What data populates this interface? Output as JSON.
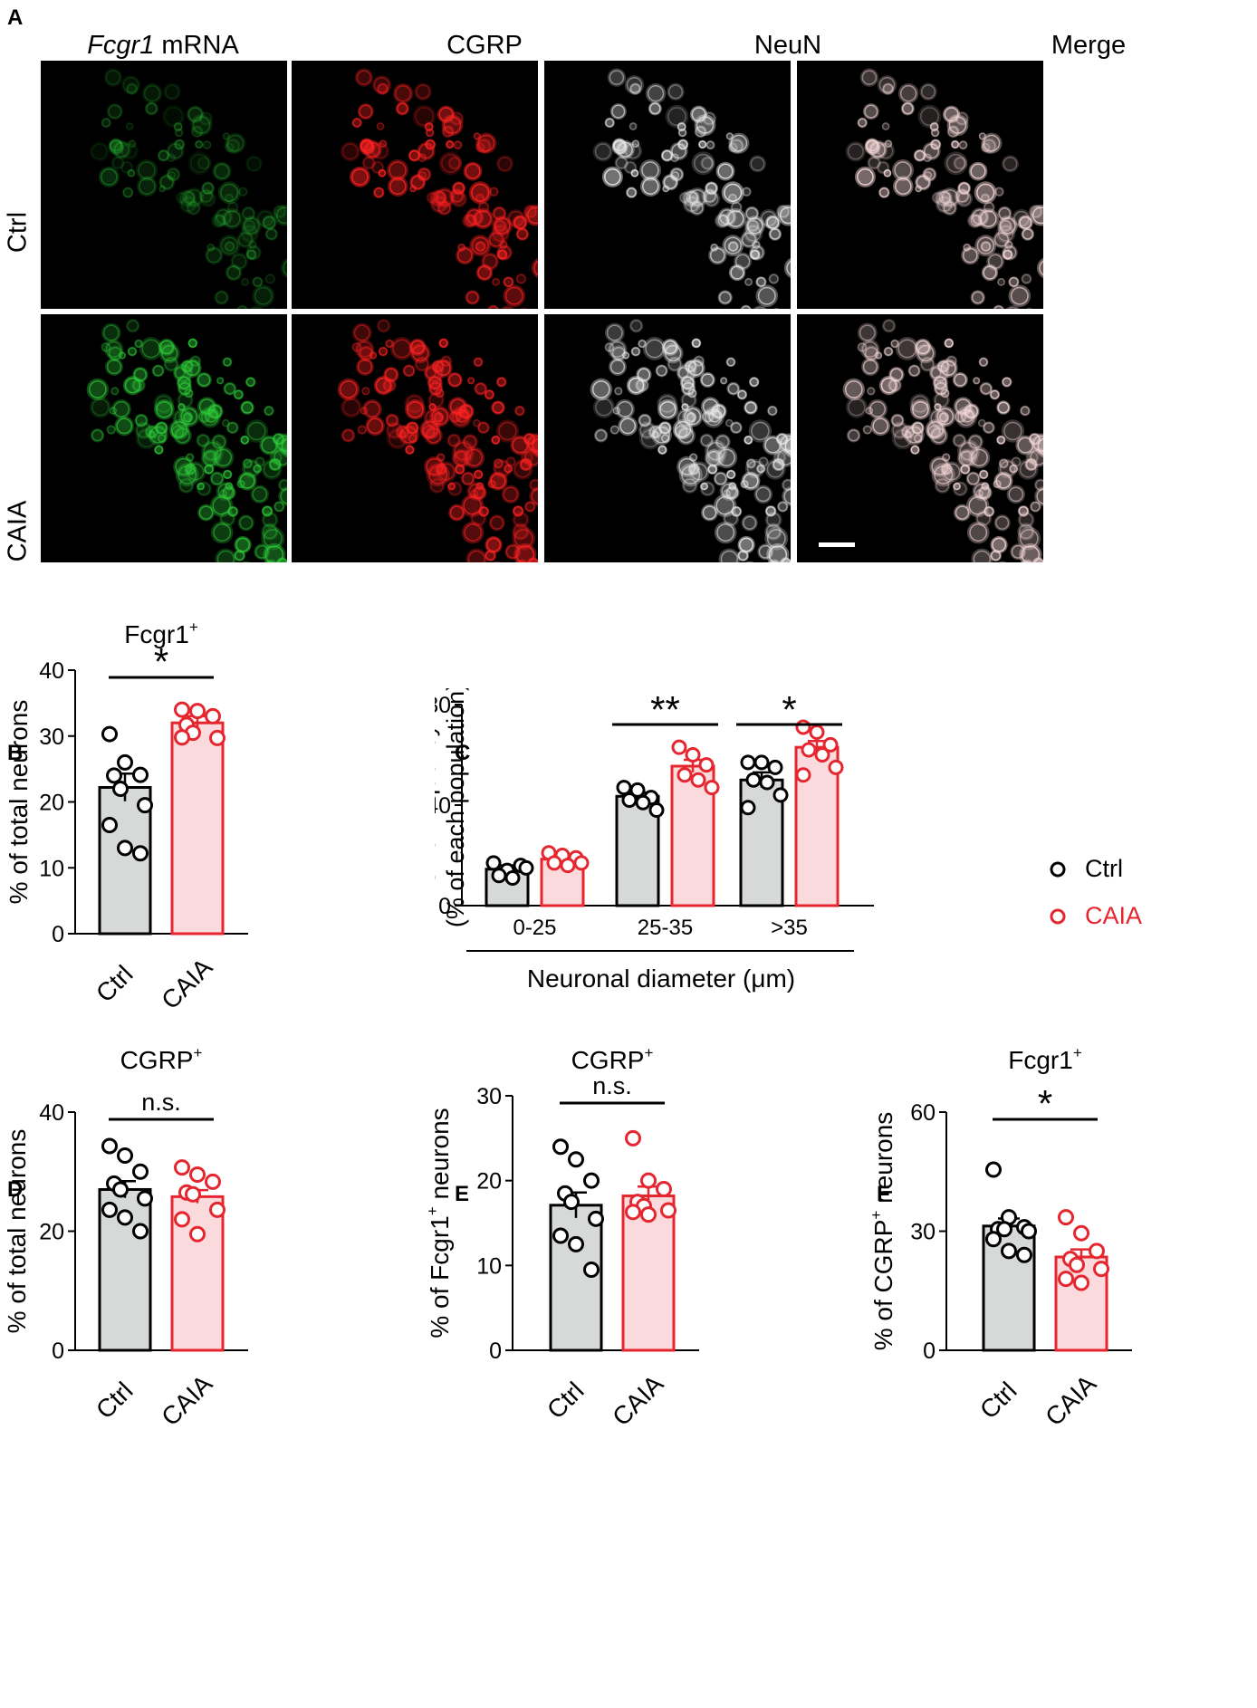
{
  "figure": {
    "panel_letters": [
      "A",
      "B",
      "C",
      "D",
      "E",
      "F"
    ],
    "microscopy": {
      "columns": [
        {
          "title_em": "Fcgr1",
          "title_rest": " mRNA",
          "color": "#2fd03a",
          "icon": "green-fluorescence"
        },
        {
          "title_em": "",
          "title_rest": "CGRP",
          "color": "#ff2222",
          "icon": "red-fluorescence"
        },
        {
          "title_em": "",
          "title_rest": "NeuN",
          "color": "#e8e8e8",
          "icon": "white-fluorescence"
        },
        {
          "title_em": "",
          "title_rest": "Merge",
          "color": "#f2d6d6",
          "icon": "merged-fluorescence"
        }
      ],
      "rows": [
        {
          "label": "Ctrl",
          "intensity": 0.45
        },
        {
          "label": "CAIA",
          "intensity": 1.0
        }
      ]
    },
    "colors": {
      "ctrl_fill": "#d6d9d8",
      "ctrl_stroke": "#000000",
      "caia_fill": "#fbdadd",
      "caia_stroke": "#e5262f"
    }
  },
  "chart_data": [
    {
      "panel": "B",
      "type": "bar",
      "title": "Fcgr1",
      "title_sup": "+",
      "ylabel": "% of total neurons",
      "ylim": [
        0,
        40
      ],
      "yticks": [
        0,
        10,
        20,
        30,
        40
      ],
      "categories": [
        "Ctrl",
        "CAIA"
      ],
      "values": [
        22.2,
        32.0
      ],
      "errors": [
        2.1,
        1.0
      ],
      "points": [
        [
          30.3,
          26.0,
          24.1,
          24.0,
          22.0,
          19.5,
          16.5,
          13.0,
          12.2
        ],
        [
          34.0,
          33.8,
          33.0,
          31.7,
          30.5,
          29.7,
          29.8
        ]
      ],
      "significance": "*"
    },
    {
      "panel": "C",
      "type": "bar",
      "title": "",
      "ylabel": "Size frequency",
      "ylabel2": "(% of each population)",
      "xlabel": "Neuronal diameter (μm)",
      "ylim": [
        0,
        80
      ],
      "yticks": [
        0,
        40,
        80
      ],
      "categories": [
        "0-25",
        "25-35",
        ">35"
      ],
      "series": [
        {
          "name": "Ctrl",
          "values": [
            14.5,
            43.5,
            50.0
          ],
          "errors": [
            1.5,
            1.5,
            3.0
          ],
          "points": [
            [
              17,
              14,
              16,
              12,
              11,
              15
            ],
            [
              47,
              46,
              43,
              42,
              41,
              38
            ],
            [
              57,
              57,
              55,
              50,
              49,
              44,
              39
            ]
          ]
        },
        {
          "name": "CAIA",
          "values": [
            18.5,
            55.5,
            63.0
          ],
          "errors": [
            1.5,
            2.5,
            2.5
          ],
          "points": [
            [
              21,
              20,
              19,
              17,
              16,
              17
            ],
            [
              63,
              60,
              56,
              52,
              50,
              47
            ],
            [
              71,
              69,
              64,
              62,
              60,
              55,
              52
            ]
          ]
        }
      ],
      "significance": [
        "",
        "**",
        "*"
      ],
      "legend": "right"
    },
    {
      "panel": "D",
      "type": "bar",
      "title": "CGRP",
      "title_sup": "+",
      "ylabel": "% of total neurons",
      "ylim": [
        0,
        40
      ],
      "yticks": [
        0,
        20,
        40
      ],
      "categories": [
        "Ctrl",
        "CAIA"
      ],
      "values": [
        27.0,
        25.8
      ],
      "errors": [
        1.4,
        1.1
      ],
      "points": [
        [
          34.3,
          32.7,
          30.0,
          28.0,
          27.0,
          25.5,
          23.6,
          22.3,
          20.0
        ],
        [
          30.7,
          29.5,
          28.3,
          26.5,
          26.2,
          23.6,
          22.0,
          19.5
        ]
      ],
      "significance": "n.s."
    },
    {
      "panel": "E",
      "type": "bar",
      "title": "CGRP",
      "title_sup": "+",
      "ylabel": "% of Fcgr1",
      "ylabel_sup": "+",
      "ylabel_rest": " neurons",
      "ylim": [
        0,
        30
      ],
      "yticks": [
        0,
        10,
        20,
        30
      ],
      "categories": [
        "Ctrl",
        "CAIA"
      ],
      "values": [
        17.1,
        18.2
      ],
      "errors": [
        1.5,
        1.1
      ],
      "points": [
        [
          24.0,
          22.5,
          20.0,
          18.5,
          17.5,
          15.5,
          13.5,
          12.5,
          9.5
        ],
        [
          25.0,
          20.0,
          19.0,
          17.5,
          17.0,
          16.5,
          16.3,
          16.0
        ]
      ],
      "significance": "n.s."
    },
    {
      "panel": "F",
      "type": "bar",
      "title": "Fcgr1",
      "title_sup": "+",
      "ylabel": "% of CGRP",
      "ylabel_sup": "+",
      "ylabel_rest": " neurons",
      "ylim": [
        0,
        60
      ],
      "yticks": [
        0,
        30,
        60
      ],
      "categories": [
        "Ctrl",
        "CAIA"
      ],
      "values": [
        31.3,
        23.5
      ],
      "errors": [
        1.9,
        1.9
      ],
      "points": [
        [
          45.5,
          33.5,
          31.0,
          30.5,
          30.5,
          30.0,
          28.0,
          25.0,
          24.0
        ],
        [
          33.5,
          29.5,
          25.0,
          23.0,
          21.5,
          20.5,
          18.0,
          17.0
        ]
      ],
      "significance": "*"
    }
  ]
}
